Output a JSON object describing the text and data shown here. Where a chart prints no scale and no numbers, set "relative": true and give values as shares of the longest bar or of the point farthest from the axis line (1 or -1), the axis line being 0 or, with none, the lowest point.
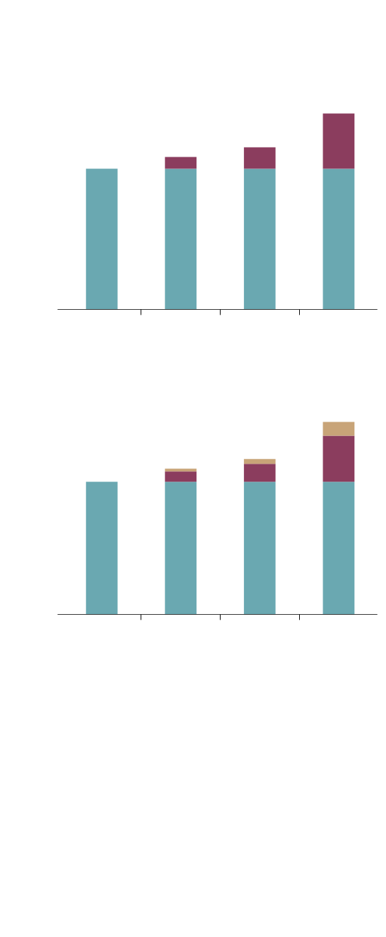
{
  "chart_data": [
    {
      "type": "bar",
      "relative": true,
      "stacked": true,
      "categories": [
        null,
        null,
        null,
        null
      ],
      "series": [
        {
          "color": "#6aa8b1",
          "values": [
            0.718,
            0.718,
            0.718,
            0.718
          ]
        },
        {
          "color": "#8b3d5e",
          "values": [
            0,
            0.06,
            0.109,
            0.282
          ]
        }
      ]
    },
    {
      "type": "bar",
      "relative": true,
      "stacked": true,
      "categories": [
        null,
        null,
        null,
        null
      ],
      "series": [
        {
          "color": "#6aa8b1",
          "values": [
            0.689,
            0.689,
            0.689,
            0.689
          ]
        },
        {
          "color": "#8b3d5e",
          "values": [
            0,
            0.054,
            0.093,
            0.239
          ]
        },
        {
          "color": "#c8a478",
          "values": [
            0,
            0.014,
            0.025,
            0.072
          ]
        }
      ]
    }
  ]
}
